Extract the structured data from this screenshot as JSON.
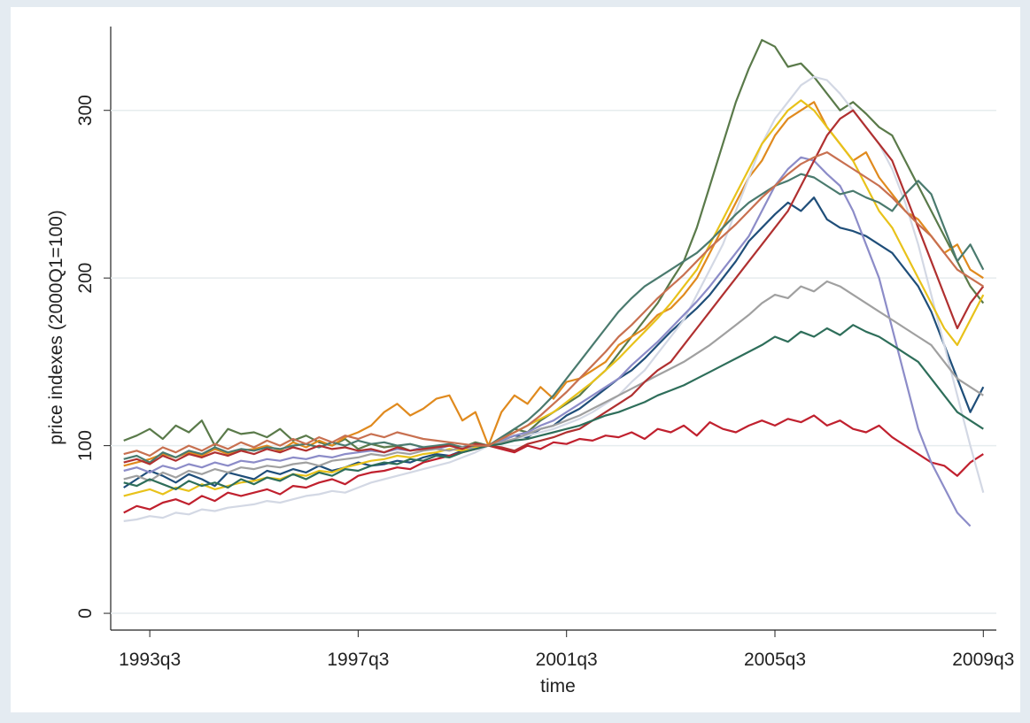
{
  "chart_data": {
    "type": "line",
    "x_label": "time",
    "y_label": "price indexes (2000Q1=100)",
    "x": [
      132,
      133,
      134,
      135,
      136,
      137,
      138,
      139,
      140,
      141,
      142,
      143,
      144,
      145,
      146,
      147,
      148,
      149,
      150,
      151,
      152,
      153,
      154,
      155,
      156,
      157,
      158,
      159,
      160,
      161,
      162,
      163,
      164,
      165,
      166,
      167,
      168,
      169,
      170,
      171,
      172,
      173,
      174,
      175,
      176,
      177,
      178,
      179,
      180,
      181,
      182,
      183,
      184,
      185,
      186,
      187,
      188,
      189,
      190,
      191,
      192,
      193,
      194,
      195,
      196,
      197,
      198
    ],
    "xlim": [
      131,
      199
    ],
    "xticks": [
      {
        "value": 134,
        "label": "1993q3"
      },
      {
        "value": 150,
        "label": "1997q3"
      },
      {
        "value": 166,
        "label": "2001q3"
      },
      {
        "value": 182,
        "label": "2005q3"
      },
      {
        "value": 198,
        "label": "2009q3"
      }
    ],
    "ylim": [
      -10,
      350
    ],
    "yticks": [
      0,
      100,
      200,
      300
    ],
    "grid": true,
    "series": [
      {
        "color": "#5a7a4a",
        "values": [
          103,
          106,
          110,
          104,
          112,
          108,
          115,
          100,
          110,
          107,
          108,
          105,
          110,
          103,
          106,
          102,
          100,
          104,
          98,
          101,
          99,
          100,
          97,
          99,
          98,
          101,
          99,
          102,
          100,
          104,
          110,
          108,
          115,
          120,
          125,
          130,
          138,
          145,
          155,
          165,
          175,
          185,
          198,
          210,
          230,
          255,
          280,
          305,
          325,
          342,
          338,
          326,
          328,
          320,
          310,
          300,
          305,
          298,
          290,
          285,
          270,
          255,
          240,
          225,
          210,
          195,
          185
        ]
      },
      {
        "color": "#1f4e79",
        "values": [
          75,
          80,
          85,
          82,
          78,
          83,
          80,
          76,
          84,
          82,
          80,
          85,
          83,
          86,
          84,
          88,
          85,
          87,
          90,
          88,
          89,
          91,
          90,
          93,
          95,
          94,
          97,
          98,
          100,
          103,
          106,
          105,
          110,
          112,
          118,
          122,
          128,
          134,
          140,
          145,
          152,
          160,
          168,
          175,
          182,
          190,
          200,
          210,
          222,
          230,
          238,
          245,
          240,
          248,
          235,
          230,
          228,
          225,
          220,
          215,
          205,
          195,
          180,
          160,
          140,
          120,
          135
        ]
      },
      {
        "color": "#c0202e",
        "values": [
          60,
          64,
          62,
          66,
          68,
          65,
          70,
          67,
          72,
          70,
          72,
          74,
          71,
          76,
          75,
          78,
          80,
          77,
          82,
          84,
          85,
          87,
          86,
          90,
          92,
          94,
          96,
          98,
          100,
          98,
          96,
          100,
          98,
          102,
          101,
          104,
          103,
          106,
          105,
          108,
          104,
          110,
          108,
          112,
          106,
          114,
          110,
          108,
          112,
          115,
          112,
          116,
          114,
          118,
          112,
          115,
          110,
          108,
          112,
          105,
          100,
          95,
          90,
          88,
          82,
          90,
          95
        ]
      },
      {
        "color": "#e08a1e",
        "values": [
          88,
          90,
          92,
          95,
          93,
          96,
          94,
          98,
          95,
          97,
          98,
          100,
          97,
          102,
          99,
          103,
          100,
          105,
          108,
          112,
          120,
          125,
          118,
          122,
          128,
          130,
          115,
          120,
          100,
          120,
          130,
          125,
          135,
          128,
          138,
          140,
          145,
          150,
          160,
          165,
          170,
          178,
          182,
          190,
          200,
          215,
          230,
          245,
          260,
          270,
          285,
          295,
          300,
          305,
          290,
          280,
          270,
          275,
          260,
          250,
          240,
          235,
          225,
          215,
          220,
          205,
          200
        ]
      },
      {
        "color": "#d3d8e4",
        "values": [
          55,
          56,
          58,
          57,
          60,
          59,
          62,
          61,
          63,
          64,
          65,
          67,
          66,
          68,
          70,
          71,
          73,
          72,
          75,
          78,
          80,
          82,
          84,
          86,
          88,
          90,
          93,
          96,
          100,
          102,
          104,
          106,
          108,
          110,
          113,
          116,
          120,
          125,
          130,
          138,
          145,
          155,
          165,
          175,
          190,
          205,
          220,
          240,
          260,
          280,
          295,
          305,
          315,
          320,
          318,
          310,
          300,
          290,
          280,
          265,
          245,
          220,
          190,
          160,
          130,
          100,
          72
        ]
      },
      {
        "color": "#8c8cc8",
        "values": [
          85,
          87,
          84,
          88,
          86,
          89,
          87,
          90,
          88,
          91,
          90,
          92,
          91,
          93,
          92,
          94,
          93,
          95,
          96,
          97,
          96,
          98,
          97,
          99,
          98,
          100,
          99,
          101,
          100,
          103,
          106,
          108,
          112,
          115,
          120,
          125,
          130,
          135,
          140,
          148,
          155,
          162,
          170,
          178,
          186,
          195,
          205,
          215,
          225,
          240,
          255,
          265,
          272,
          270,
          262,
          255,
          240,
          220,
          200,
          170,
          140,
          110,
          90,
          75,
          60,
          52,
          null
        ]
      },
      {
        "color": "#e8c21a",
        "values": [
          70,
          72,
          74,
          71,
          75,
          73,
          77,
          74,
          76,
          78,
          79,
          81,
          80,
          83,
          82,
          85,
          84,
          87,
          89,
          91,
          92,
          94,
          93,
          95,
          96,
          98,
          97,
          99,
          100,
          104,
          108,
          112,
          116,
          120,
          126,
          132,
          138,
          145,
          152,
          160,
          168,
          176,
          185,
          195,
          205,
          220,
          235,
          250,
          265,
          280,
          290,
          300,
          306,
          300,
          290,
          280,
          270,
          255,
          240,
          230,
          215,
          200,
          185,
          170,
          160,
          175,
          190
        ]
      },
      {
        "color": "#4a7a6e",
        "values": [
          92,
          94,
          90,
          96,
          93,
          97,
          95,
          99,
          96,
          98,
          97,
          99,
          98,
          100,
          101,
          99,
          102,
          100,
          103,
          101,
          102,
          100,
          101,
          99,
          100,
          101,
          99,
          100,
          100,
          105,
          110,
          115,
          122,
          130,
          140,
          150,
          160,
          170,
          180,
          188,
          195,
          200,
          205,
          210,
          215,
          222,
          230,
          238,
          245,
          250,
          255,
          258,
          262,
          260,
          255,
          250,
          252,
          248,
          245,
          240,
          250,
          258,
          250,
          230,
          210,
          220,
          205
        ]
      },
      {
        "color": "#a0a0a0",
        "values": [
          80,
          82,
          79,
          84,
          81,
          85,
          83,
          86,
          84,
          87,
          86,
          88,
          87,
          89,
          90,
          88,
          91,
          92,
          93,
          95,
          94,
          96,
          95,
          97,
          98,
          97,
          99,
          98,
          100,
          102,
          104,
          107,
          110,
          112,
          115,
          118,
          122,
          126,
          130,
          134,
          138,
          142,
          146,
          150,
          155,
          160,
          166,
          172,
          178,
          185,
          190,
          188,
          195,
          192,
          198,
          195,
          190,
          185,
          180,
          175,
          170,
          165,
          160,
          150,
          140,
          135,
          130
        ]
      },
      {
        "color": "#b03030",
        "values": [
          90,
          92,
          89,
          94,
          91,
          95,
          93,
          96,
          94,
          97,
          95,
          98,
          96,
          99,
          97,
          100,
          98,
          99,
          97,
          98,
          96,
          99,
          97,
          98,
          99,
          100,
          98,
          101,
          100,
          99,
          97,
          101,
          103,
          105,
          108,
          110,
          115,
          120,
          125,
          130,
          138,
          145,
          150,
          160,
          170,
          180,
          190,
          200,
          210,
          220,
          230,
          240,
          255,
          270,
          285,
          295,
          300,
          290,
          280,
          270,
          250,
          230,
          210,
          190,
          170,
          185,
          195
        ]
      },
      {
        "color": "#2e6e5a",
        "values": [
          78,
          76,
          80,
          77,
          74,
          79,
          76,
          78,
          75,
          80,
          77,
          81,
          79,
          83,
          80,
          84,
          82,
          86,
          85,
          88,
          90,
          89,
          92,
          91,
          94,
          93,
          96,
          98,
          100,
          101,
          103,
          104,
          106,
          108,
          110,
          112,
          115,
          118,
          120,
          123,
          126,
          130,
          133,
          136,
          140,
          144,
          148,
          152,
          156,
          160,
          165,
          162,
          168,
          165,
          170,
          166,
          172,
          168,
          165,
          160,
          155,
          150,
          140,
          130,
          120,
          115,
          110
        ]
      },
      {
        "color": "#c87050",
        "values": [
          95,
          97,
          94,
          99,
          96,
          100,
          97,
          101,
          98,
          102,
          99,
          103,
          100,
          104,
          101,
          105,
          102,
          106,
          104,
          107,
          105,
          108,
          106,
          104,
          103,
          102,
          101,
          100,
          100,
          104,
          108,
          112,
          118,
          125,
          132,
          140,
          148,
          156,
          165,
          172,
          180,
          188,
          195,
          202,
          210,
          218,
          225,
          232,
          240,
          248,
          255,
          262,
          268,
          272,
          275,
          270,
          265,
          260,
          255,
          248,
          240,
          232,
          225,
          215,
          205,
          200,
          195
        ]
      }
    ]
  }
}
